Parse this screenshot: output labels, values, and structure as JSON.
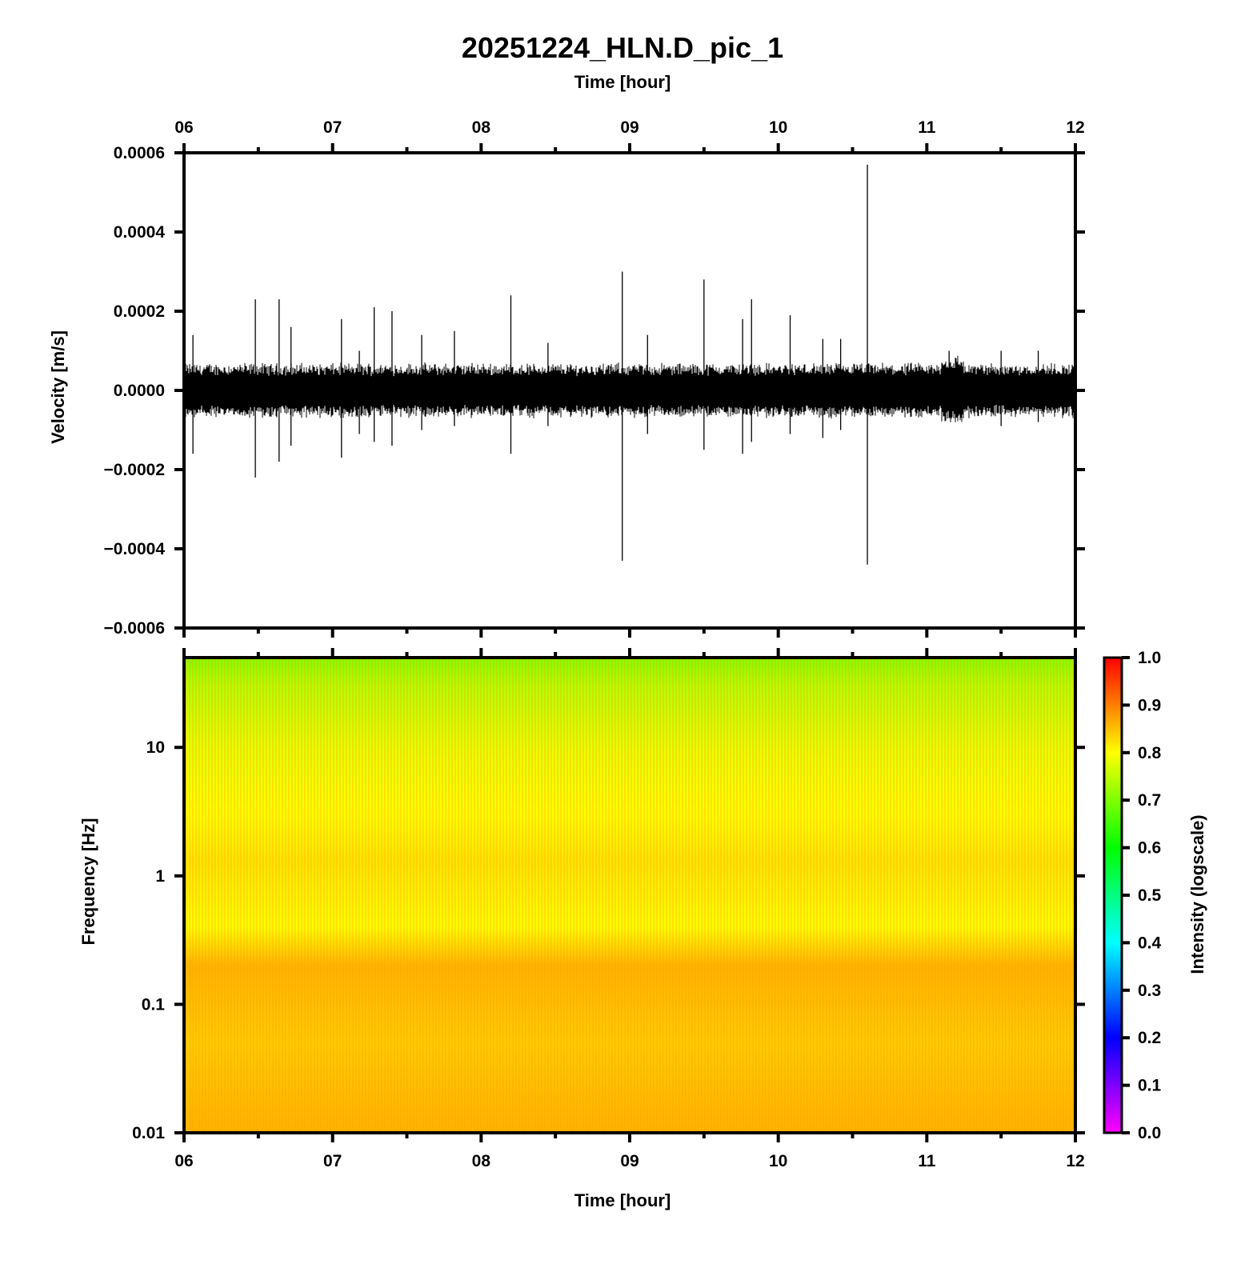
{
  "title": "20251224_HLN.D_pic_1",
  "chart_data": [
    {
      "type": "line",
      "name": "waveform",
      "top_xlabel": "Time [hour]",
      "ylabel": "Velocity [m/s]",
      "xlim": [
        6,
        12
      ],
      "ylim": [
        -0.0006,
        0.0006
      ],
      "x_ticks": [
        "06",
        "07",
        "08",
        "09",
        "10",
        "11",
        "12"
      ],
      "y_ticks": [
        {
          "value": 0.0006,
          "label": "0.0006"
        },
        {
          "value": 0.0004,
          "label": "0.0004"
        },
        {
          "value": 0.0002,
          "label": "0.0002"
        },
        {
          "value": 0.0,
          "label": "0.0000"
        },
        {
          "value": -0.0002,
          "label": "−0.0002"
        },
        {
          "value": -0.0004,
          "label": "−0.0004"
        },
        {
          "value": -0.0006,
          "label": "−0.0006"
        }
      ],
      "noise_amplitude": 6e-05,
      "line_color": "#000000",
      "spikes": [
        {
          "t": 6.06,
          "max": 0.00014,
          "min": -0.00016
        },
        {
          "t": 6.48,
          "max": 0.00023,
          "min": -0.00022
        },
        {
          "t": 6.64,
          "max": 0.00023,
          "min": -0.00018
        },
        {
          "t": 6.72,
          "max": 0.00016,
          "min": -0.00014
        },
        {
          "t": 7.06,
          "max": 0.00018,
          "min": -0.00017
        },
        {
          "t": 7.18,
          "max": 0.0001,
          "min": -0.00011
        },
        {
          "t": 7.28,
          "max": 0.00021,
          "min": -0.00013
        },
        {
          "t": 7.4,
          "max": 0.0002,
          "min": -0.00014
        },
        {
          "t": 7.6,
          "max": 0.00014,
          "min": -0.0001
        },
        {
          "t": 7.82,
          "max": 0.00015,
          "min": -9e-05
        },
        {
          "t": 8.2,
          "max": 0.00024,
          "min": -0.00016
        },
        {
          "t": 8.45,
          "max": 0.00012,
          "min": -9e-05
        },
        {
          "t": 8.95,
          "max": 0.0003,
          "min": -0.00043
        },
        {
          "t": 9.12,
          "max": 0.00014,
          "min": -0.00011
        },
        {
          "t": 9.5,
          "max": 0.00028,
          "min": -0.00015
        },
        {
          "t": 9.76,
          "max": 0.00018,
          "min": -0.00016
        },
        {
          "t": 9.82,
          "max": 0.00023,
          "min": -0.00013
        },
        {
          "t": 10.08,
          "max": 0.00019,
          "min": -0.00011
        },
        {
          "t": 10.3,
          "max": 0.00013,
          "min": -0.00012
        },
        {
          "t": 10.42,
          "max": 0.00013,
          "min": -0.0001
        },
        {
          "t": 10.6,
          "max": 0.00057,
          "min": -0.00044
        },
        {
          "t": 11.15,
          "max": 0.0001,
          "min": -7e-05
        },
        {
          "t": 11.5,
          "max": 0.0001,
          "min": -9e-05
        },
        {
          "t": 11.75,
          "max": 0.0001,
          "min": -8e-05
        }
      ]
    },
    {
      "type": "heatmap",
      "name": "spectrogram",
      "xlabel": "Time [hour]",
      "ylabel": "Frequency [Hz]",
      "xlim": [
        6,
        12
      ],
      "ylim": [
        0.01,
        50
      ],
      "y_scale": "log",
      "x_ticks": [
        "06",
        "07",
        "08",
        "09",
        "10",
        "11",
        "12"
      ],
      "y_ticks": [
        {
          "value": 10,
          "label": "10"
        },
        {
          "value": 1,
          "label": "1"
        },
        {
          "value": 0.1,
          "label": "0.1"
        },
        {
          "value": 0.01,
          "label": "0.01"
        }
      ],
      "intensity_profile": [
        {
          "freq": 50,
          "intensity": 0.7
        },
        {
          "freq": 30,
          "intensity": 0.74
        },
        {
          "freq": 10,
          "intensity": 0.78
        },
        {
          "freq": 3,
          "intensity": 0.8
        },
        {
          "freq": 1.3,
          "intensity": 0.82
        },
        {
          "freq": 0.4,
          "intensity": 0.8
        },
        {
          "freq": 0.2,
          "intensity": 0.86
        },
        {
          "freq": 0.05,
          "intensity": 0.84
        },
        {
          "freq": 0.01,
          "intensity": 0.86
        }
      ],
      "colorbar": {
        "label": "Intensity (logscale)",
        "range": [
          0,
          1
        ],
        "ticks": [
          "0.0",
          "0.1",
          "0.2",
          "0.3",
          "0.4",
          "0.5",
          "0.6",
          "0.7",
          "0.8",
          "0.9",
          "1.0"
        ],
        "colors": [
          "#ff00ff",
          "#0000ff",
          "#00ffff",
          "#00ff00",
          "#ffff00",
          "#ff0000"
        ]
      }
    }
  ]
}
